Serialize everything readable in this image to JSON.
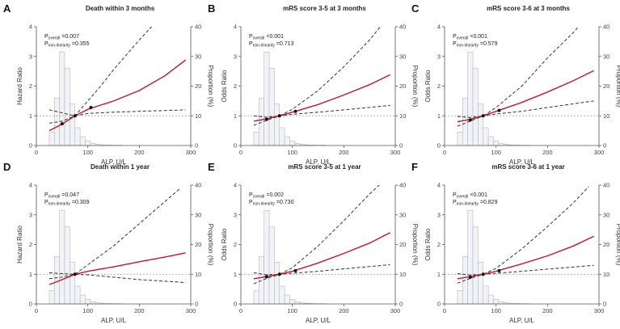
{
  "figure": {
    "x_axis_label": "ALP, U/L",
    "right_axis_label": "Proportion (%)"
  },
  "chart_data": [
    {
      "type": "line",
      "letter": "A",
      "title": "Death within 3 months",
      "ylabel": "Hazard Ratio",
      "ylabel_right": "Proportion (%)",
      "xlabel": "ALP, U/L",
      "p_overall": "=0.007",
      "p_nonlinearity": "=0.355",
      "xlim": [
        0,
        300
      ],
      "ylim": [
        0,
        4
      ],
      "ylim_right": [
        0,
        40
      ],
      "x_ticks": [
        0,
        100,
        200,
        300
      ],
      "y_ticks": [
        0,
        1,
        2,
        3,
        4
      ],
      "y_ticks_right": [
        0,
        10,
        20,
        30,
        40
      ],
      "reference_hr": 1,
      "estimate": {
        "x": [
          25,
          50,
          75,
          100,
          125,
          150,
          200,
          250,
          290
        ],
        "y": [
          0.5,
          0.72,
          1.0,
          1.22,
          1.36,
          1.5,
          1.85,
          2.35,
          2.88
        ]
      },
      "ci_upper": {
        "x": [
          25,
          50,
          75,
          100,
          125,
          150,
          200,
          240
        ],
        "y": [
          0.75,
          0.82,
          1.0,
          1.5,
          2.0,
          2.55,
          3.55,
          4.3
        ]
      },
      "ci_lower": {
        "x": [
          25,
          50,
          75,
          100,
          150,
          200,
          290
        ],
        "y": [
          1.2,
          1.1,
          1.0,
          1.08,
          1.12,
          1.15,
          1.2
        ]
      },
      "knots": {
        "x": [
          50,
          75,
          106
        ],
        "y": [
          0.73,
          1.0,
          1.28
        ]
      },
      "histogram": {
        "bin_start": 25,
        "bin_width": 10,
        "percent": [
          4.5,
          16,
          31.5,
          26,
          14,
          6,
          3,
          1.5,
          0.7,
          0.4,
          0.2,
          0.15,
          0.1,
          0.1
        ]
      }
    },
    {
      "type": "line",
      "letter": "B",
      "title": "mRS score 3-5 at 3 months",
      "ylabel": "Odds Ratio",
      "ylabel_right": "Proportion (%)",
      "xlabel": "ALP, U/L",
      "p_overall": "<0.001",
      "p_nonlinearity": "=0.713",
      "xlim": [
        0,
        300
      ],
      "ylim": [
        0,
        4
      ],
      "ylim_right": [
        0,
        40
      ],
      "x_ticks": [
        0,
        100,
        200,
        300
      ],
      "y_ticks": [
        0,
        1,
        2,
        3,
        4
      ],
      "y_ticks_right": [
        0,
        10,
        20,
        30,
        40
      ],
      "reference_hr": 1,
      "estimate": {
        "x": [
          25,
          50,
          75,
          100,
          150,
          200,
          250,
          290
        ],
        "y": [
          0.82,
          0.9,
          1.0,
          1.12,
          1.38,
          1.7,
          2.05,
          2.38
        ]
      },
      "ci_upper": {
        "x": [
          25,
          50,
          75,
          100,
          150,
          200,
          250,
          280
        ],
        "y": [
          1.0,
          0.95,
          1.0,
          1.22,
          1.85,
          2.65,
          3.55,
          4.2
        ]
      },
      "ci_lower": {
        "x": [
          25,
          50,
          75,
          100,
          150,
          200,
          290
        ],
        "y": [
          0.68,
          0.85,
          1.0,
          1.05,
          1.12,
          1.2,
          1.35
        ]
      },
      "knots": {
        "x": [
          50,
          75,
          106
        ],
        "y": [
          0.88,
          1.0,
          1.15
        ]
      },
      "histogram": {
        "bin_start": 25,
        "bin_width": 10,
        "percent": [
          4.5,
          16,
          31.5,
          26,
          14,
          6,
          3,
          1.5,
          0.7,
          0.4,
          0.2,
          0.15,
          0.1,
          0.1
        ]
      }
    },
    {
      "type": "line",
      "letter": "C",
      "title": "mRS score 3-6 at 3 months",
      "ylabel": "Odds Ratio",
      "ylabel_right": "Proportion (%)",
      "xlabel": "ALP, U/L",
      "p_overall": "<0.001",
      "p_nonlinearity": "=0.579",
      "xlim": [
        0,
        300
      ],
      "ylim": [
        0,
        4
      ],
      "ylim_right": [
        0,
        40
      ],
      "x_ticks": [
        0,
        100,
        200,
        300
      ],
      "y_ticks": [
        0,
        1,
        2,
        3,
        4
      ],
      "y_ticks_right": [
        0,
        10,
        20,
        30,
        40
      ],
      "reference_hr": 1,
      "estimate": {
        "x": [
          25,
          50,
          75,
          100,
          150,
          200,
          250,
          290
        ],
        "y": [
          0.8,
          0.88,
          1.0,
          1.15,
          1.45,
          1.8,
          2.18,
          2.52
        ]
      },
      "ci_upper": {
        "x": [
          25,
          50,
          75,
          100,
          150,
          200,
          250,
          270
        ],
        "y": [
          0.98,
          0.94,
          1.0,
          1.28,
          2.0,
          2.95,
          3.8,
          4.2
        ]
      },
      "ci_lower": {
        "x": [
          25,
          50,
          75,
          100,
          150,
          200,
          290
        ],
        "y": [
          0.65,
          0.82,
          1.0,
          1.06,
          1.15,
          1.28,
          1.5
        ]
      },
      "knots": {
        "x": [
          50,
          75,
          106
        ],
        "y": [
          0.86,
          1.0,
          1.18
        ]
      },
      "histogram": {
        "bin_start": 25,
        "bin_width": 10,
        "percent": [
          4.5,
          16,
          31.5,
          26,
          14,
          6,
          3,
          1.5,
          0.7,
          0.4,
          0.2,
          0.15,
          0.1,
          0.1
        ]
      }
    },
    {
      "type": "line",
      "letter": "D",
      "title": "Death within 1 year",
      "ylabel": "Hazard Ratio",
      "ylabel_right": "Proportion (%)",
      "xlabel": "ALP, U/L",
      "p_overall": "=0.047",
      "p_nonlinearity": "=0.309",
      "xlim": [
        0,
        300
      ],
      "ylim": [
        0,
        4
      ],
      "ylim_right": [
        0,
        40
      ],
      "x_ticks": [
        0,
        100,
        200,
        300
      ],
      "y_ticks": [
        0,
        1,
        2,
        3,
        4
      ],
      "y_ticks_right": [
        0,
        10,
        20,
        30,
        40
      ],
      "reference_hr": 1,
      "estimate": {
        "x": [
          25,
          50,
          75,
          100,
          150,
          200,
          250,
          290
        ],
        "y": [
          0.65,
          0.82,
          1.0,
          1.1,
          1.25,
          1.42,
          1.58,
          1.72
        ]
      },
      "ci_upper": {
        "x": [
          25,
          50,
          75,
          100,
          150,
          200,
          250,
          280
        ],
        "y": [
          0.85,
          0.9,
          1.0,
          1.32,
          1.95,
          2.7,
          3.45,
          3.9
        ]
      },
      "ci_lower": {
        "x": [
          25,
          50,
          75,
          100,
          150,
          200,
          290
        ],
        "y": [
          1.05,
          1.02,
          1.0,
          0.98,
          0.9,
          0.82,
          0.72
        ]
      },
      "knots": {
        "x": [
          75
        ],
        "y": [
          1.0
        ]
      },
      "histogram": {
        "bin_start": 25,
        "bin_width": 10,
        "percent": [
          4.5,
          16,
          31.5,
          26,
          14,
          6,
          3,
          1.5,
          0.7,
          0.4,
          0.2,
          0.15,
          0.1,
          0.1
        ]
      }
    },
    {
      "type": "line",
      "letter": "E",
      "title": "mRS score 3-5 at 1 year",
      "ylabel": "Odds Ratio",
      "ylabel_right": "Proportion (%)",
      "xlabel": "ALP, U/L",
      "p_overall": "=0.002",
      "p_nonlinearity": "=0.730",
      "xlim": [
        0,
        300
      ],
      "ylim": [
        0,
        4
      ],
      "ylim_right": [
        0,
        40
      ],
      "x_ticks": [
        0,
        100,
        200,
        300
      ],
      "y_ticks": [
        0,
        1,
        2,
        3,
        4
      ],
      "y_ticks_right": [
        0,
        10,
        20,
        30,
        40
      ],
      "reference_hr": 1,
      "estimate": {
        "x": [
          25,
          50,
          75,
          100,
          150,
          200,
          250,
          290
        ],
        "y": [
          0.85,
          0.92,
          1.0,
          1.1,
          1.38,
          1.7,
          2.05,
          2.4
        ]
      },
      "ci_upper": {
        "x": [
          25,
          50,
          75,
          100,
          150,
          200,
          250,
          275
        ],
        "y": [
          1.05,
          0.98,
          1.0,
          1.22,
          1.95,
          2.8,
          3.7,
          4.1
        ]
      },
      "ci_lower": {
        "x": [
          25,
          50,
          75,
          100,
          150,
          200,
          290
        ],
        "y": [
          0.68,
          0.86,
          1.0,
          1.03,
          1.1,
          1.18,
          1.32
        ]
      },
      "knots": {
        "x": [
          50,
          75,
          106
        ],
        "y": [
          0.92,
          1.0,
          1.12
        ]
      },
      "histogram": {
        "bin_start": 25,
        "bin_width": 10,
        "percent": [
          4.5,
          16,
          31.5,
          26,
          14,
          6,
          3,
          1.5,
          0.7,
          0.4,
          0.2,
          0.15,
          0.1,
          0.1
        ]
      }
    },
    {
      "type": "line",
      "letter": "F",
      "title": "mRS score 3-6 at 1 year",
      "ylabel": "Odds Ratio",
      "ylabel_right": "Proportion (%)",
      "xlabel": "ALP, U/L",
      "p_overall": "<0.001",
      "p_nonlinearity": "=0.829",
      "xlim": [
        0,
        300
      ],
      "ylim": [
        0,
        4
      ],
      "ylim_right": [
        0,
        40
      ],
      "x_ticks": [
        0,
        100,
        200,
        300
      ],
      "y_ticks": [
        0,
        1,
        2,
        3,
        4
      ],
      "y_ticks_right": [
        0,
        10,
        20,
        30,
        40
      ],
      "reference_hr": 1,
      "estimate": {
        "x": [
          25,
          50,
          75,
          100,
          150,
          200,
          250,
          290
        ],
        "y": [
          0.85,
          0.92,
          1.0,
          1.1,
          1.35,
          1.62,
          1.95,
          2.28
        ]
      },
      "ci_upper": {
        "x": [
          25,
          50,
          75,
          100,
          150,
          200,
          250,
          280
        ],
        "y": [
          1.02,
          0.97,
          1.0,
          1.2,
          1.85,
          2.6,
          3.4,
          3.95
        ]
      },
      "ci_lower": {
        "x": [
          25,
          50,
          75,
          100,
          150,
          200,
          290
        ],
        "y": [
          0.7,
          0.86,
          1.0,
          1.03,
          1.1,
          1.17,
          1.3
        ]
      },
      "knots": {
        "x": [
          50,
          75,
          106
        ],
        "y": [
          0.9,
          1.0,
          1.12
        ]
      },
      "histogram": {
        "bin_start": 25,
        "bin_width": 10,
        "percent": [
          4.5,
          16,
          31.5,
          26,
          14,
          6,
          3,
          1.5,
          0.7,
          0.4,
          0.2,
          0.15,
          0.1,
          0.1
        ]
      }
    }
  ]
}
